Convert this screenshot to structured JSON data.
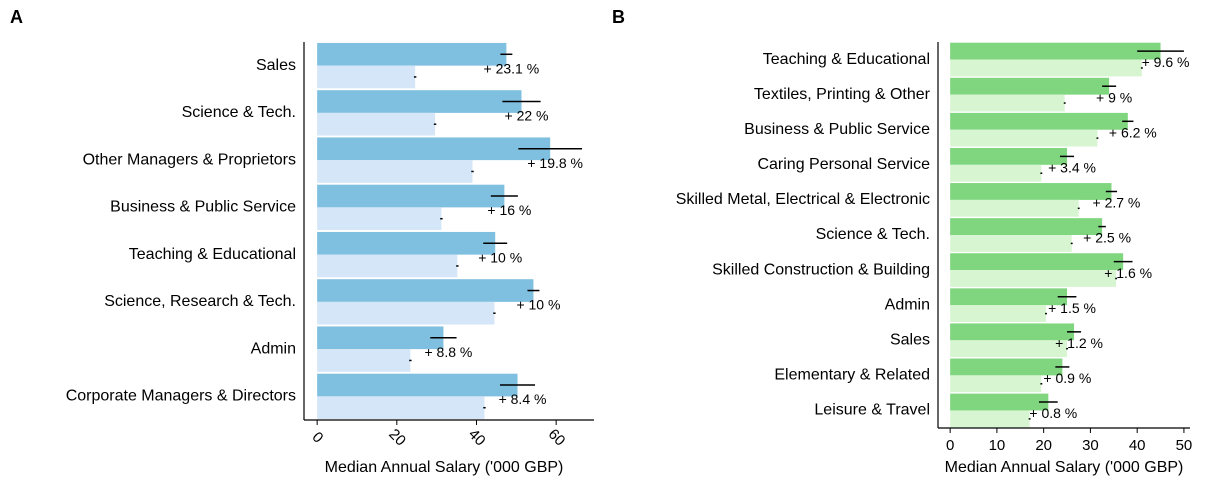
{
  "chart_data": [
    {
      "type": "bar",
      "title": "A",
      "orientation": "horizontal",
      "xlabel": "Median Annual Salary ('000 GBP)",
      "categories": [
        "Sales",
        "Science & Tech.",
        "Other Managers & Proprietors",
        "Business & Public Service",
        "Teaching & Educational",
        "Science, Research & Tech.",
        "Admin",
        "Corporate Managers & Directors"
      ],
      "series": [
        {
          "color": "#7fbfdf",
          "values": [
            47.5,
            51.3,
            58.5,
            47,
            44.7,
            54.3,
            31.7,
            50.3
          ],
          "errors": [
            1.5,
            4.8,
            8,
            3.4,
            3,
            1.5,
            3.3,
            4.4
          ]
        },
        {
          "color": "#d4e6f7",
          "values": [
            24.6,
            29.6,
            39,
            31.2,
            35.2,
            44.5,
            23.4,
            42
          ],
          "errors": [
            0.3,
            0.3,
            0.3,
            0.3,
            0.3,
            0.3,
            0.3,
            0.3
          ]
        }
      ],
      "diff_labels": [
        "+ 23.1 %",
        "+ 22 %",
        "+ 19.8 %",
        "+ 16 %",
        "+ 10 %",
        "+ 10 %",
        "+ 8.8 %",
        "+ 8.4 %"
      ],
      "xlim": [
        -3.3,
        69.5
      ],
      "xticks": [
        0,
        20,
        40,
        60
      ],
      "rotated_xticks": true
    },
    {
      "type": "bar",
      "title": "B",
      "orientation": "horizontal",
      "xlabel": "Median Annual Salary ('000 GBP)",
      "categories": [
        "Teaching & Educational",
        "Textiles, Printing & Other",
        "Business & Public Service",
        "Caring Personal Service",
        "Skilled Metal, Electrical & Electronic",
        "Science & Tech.",
        "Skilled Construction & Building",
        "Admin",
        "Sales",
        "Elementary  & Related",
        "Leisure & Travel"
      ],
      "series": [
        {
          "color": "#7fd67f",
          "values": [
            45,
            34,
            38,
            25,
            34.5,
            32.5,
            37,
            25,
            26.5,
            24,
            21
          ],
          "errors": [
            5,
            1.5,
            1.2,
            1.5,
            1.2,
            0.8,
            2,
            2,
            1.5,
            1.5,
            2
          ]
        },
        {
          "color": "#d8f5d2",
          "values": [
            41,
            24.5,
            31.5,
            19.5,
            27.5,
            26,
            35.5,
            20.5,
            25,
            19.5,
            17
          ],
          "errors": [
            0.2,
            0.2,
            0.2,
            0.2,
            0.2,
            0.2,
            0.2,
            0.2,
            0.2,
            0.2,
            0.2
          ]
        }
      ],
      "diff_labels": [
        "+ 9.6 %",
        "+ 9 %",
        "+ 6.2 %",
        "+ 3.4 %",
        "+ 2.7 %",
        "+ 2.5 %",
        "+ 1.6 %",
        "+ 1.5 %",
        "+ 1.2 %",
        "+ 0.9 %",
        "+ 0.8 %"
      ],
      "xlim": [
        -2.6,
        51.3
      ],
      "xticks": [
        0,
        10,
        20,
        30,
        40,
        50
      ],
      "rotated_xticks": false
    }
  ]
}
